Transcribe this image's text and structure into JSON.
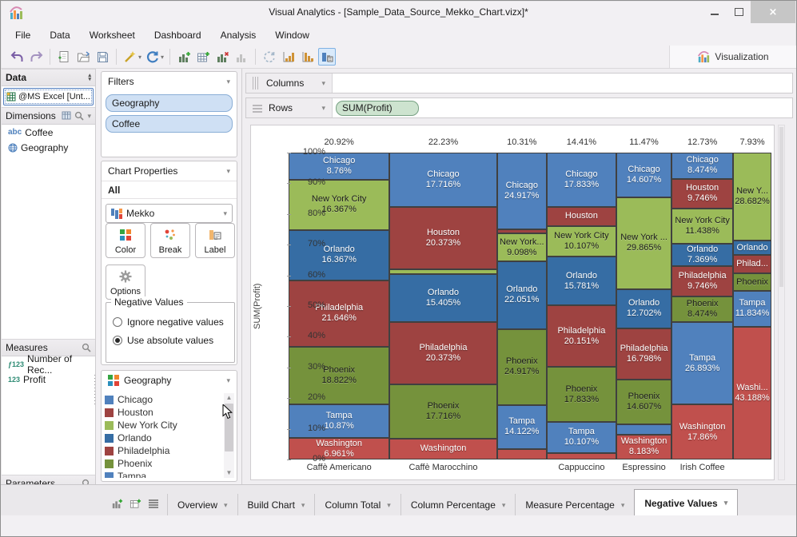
{
  "window": {
    "title": "Visual Analytics - [Sample_Data_Source_Mekko_Chart.vizx]*"
  },
  "menu": {
    "items": [
      "File",
      "Data",
      "Worksheet",
      "Dashboard",
      "Analysis",
      "Window"
    ]
  },
  "toolbar": {
    "visualization_label": "Visualization"
  },
  "data_panel": {
    "header": "Data",
    "source": "@MS Excel [Unt...",
    "dimensions": {
      "header": "Dimensions",
      "items": [
        {
          "icon": "abc",
          "label": "Coffee"
        },
        {
          "icon": "globe",
          "label": "Geography"
        }
      ]
    },
    "measures": {
      "header": "Measures",
      "items": [
        {
          "icon": "ƒ123",
          "label": "Number of Rec..."
        },
        {
          "icon": "123",
          "label": "Profit"
        }
      ]
    },
    "parameters": {
      "header": "Parameters"
    }
  },
  "filters": {
    "header": "Filters",
    "pills": [
      "Geography",
      "Coffee"
    ]
  },
  "chart_properties": {
    "header": "Chart Properties",
    "scope": "All",
    "chart_type_label": "Mekko",
    "color_button": "Color",
    "break_button": "Break",
    "label_button": "Label",
    "options_button": "Options",
    "negative_values": {
      "legend": "Negative Values",
      "options": [
        {
          "label": "Ignore negative values",
          "selected": false
        },
        {
          "label": "Use absolute values",
          "selected": true
        }
      ]
    }
  },
  "legend": {
    "header": "Geography",
    "items": [
      {
        "label": "Chicago",
        "color": "#5081BD"
      },
      {
        "label": "Houston",
        "color": "#9E4341"
      },
      {
        "label": "New York City",
        "color": "#9BBB59"
      },
      {
        "label": "Orlando",
        "color": "#366DA4"
      },
      {
        "label": "Philadelphia",
        "color": "#9E4341"
      },
      {
        "label": "Phoenix",
        "color": "#75923C"
      },
      {
        "label": "Tampa",
        "color": "#5081BD"
      }
    ]
  },
  "shelves": {
    "columns": "Columns",
    "rows": "Rows",
    "rows_pill": "SUM(Profit)"
  },
  "chart_data": {
    "type": "mekko",
    "ylabel": "SUM(Profit)",
    "y_ticks": [
      "100%",
      "90%",
      "80%",
      "70%",
      "60%",
      "50%",
      "40%",
      "30%",
      "20%",
      "10%",
      "0%"
    ],
    "colors": {
      "Chicago": "#5081BD",
      "Houston": "#9E4341",
      "New York City": "#9BBB59",
      "Orlando": "#366DA4",
      "Philadelphia": "#9E4341",
      "Phoenix": "#75923C",
      "Tampa": "#5081BD",
      "Washington": "#C0504D"
    },
    "dark_text_cities": [
      "New York City",
      "Phoenix"
    ],
    "columns": [
      {
        "category": "Caffè Americano",
        "width_pct": 20.92,
        "width_label": "20.92%",
        "show_category": true,
        "segments": [
          {
            "city": "Chicago",
            "value": 8.76,
            "name_label": "Chicago",
            "value_label": "8.76%"
          },
          {
            "city": "New York City",
            "value": 16.367,
            "name_label": "New York City",
            "value_label": "16.367%"
          },
          {
            "city": "Orlando",
            "value": 16.367,
            "name_label": "Orlando",
            "value_label": "16.367%"
          },
          {
            "city": "Philadelphia",
            "value": 21.646,
            "name_label": "Philadelphia",
            "value_label": "21.646%"
          },
          {
            "city": "Phoenix",
            "value": 18.822,
            "name_label": "Phoenix",
            "value_label": "18.822%"
          },
          {
            "city": "Tampa",
            "value": 10.87,
            "name_label": "Tampa",
            "value_label": "10.87%"
          },
          {
            "city": "Washington",
            "value": 6.961,
            "name_label": "Washington",
            "value_label": "6.961%"
          }
        ]
      },
      {
        "category": "Caffè Marocchino",
        "width_pct": 22.23,
        "width_label": "22.23%",
        "show_category": true,
        "segments": [
          {
            "city": "Chicago",
            "value": 17.716,
            "name_label": "Chicago",
            "value_label": "17.716%"
          },
          {
            "city": "Houston",
            "value": 20.373,
            "name_label": "Houston",
            "value_label": "20.373%"
          },
          {
            "city": "New York City",
            "value": 1.6,
            "name_label": null,
            "value_label": null
          },
          {
            "city": "Orlando",
            "value": 15.405,
            "name_label": "Orlando",
            "value_label": "15.405%"
          },
          {
            "city": "Philadelphia",
            "value": 20.373,
            "name_label": "Philadelphia",
            "value_label": "20.373%"
          },
          {
            "city": "Phoenix",
            "value": 17.716,
            "name_label": "Phoenix",
            "value_label": "17.716%"
          },
          {
            "city": "Washington",
            "value": 6.817,
            "name_label": "Washington",
            "value_label": null
          }
        ]
      },
      {
        "category": "",
        "width_pct": 10.31,
        "width_label": "10.31%",
        "show_category": false,
        "segments": [
          {
            "city": "Chicago",
            "value": 24.917,
            "name_label": "Chicago",
            "value_label": "24.917%"
          },
          {
            "city": "Houston",
            "value": 1.4,
            "name_label": null,
            "value_label": null
          },
          {
            "city": "New York City",
            "value": 9.098,
            "name_label": "New York...",
            "value_label": "9.098%"
          },
          {
            "city": "Orlando",
            "value": 22.051,
            "name_label": "Orlando",
            "value_label": "22.051%"
          },
          {
            "city": "Phoenix",
            "value": 24.917,
            "name_label": "Phoenix",
            "value_label": "24.917%"
          },
          {
            "city": "Tampa",
            "value": 14.122,
            "name_label": "Tampa",
            "value_label": "14.122%"
          },
          {
            "city": "Washington",
            "value": 3.495,
            "name_label": null,
            "value_label": null
          }
        ]
      },
      {
        "category": "Cappuccino",
        "width_pct": 14.41,
        "width_label": "14.41%",
        "show_category": true,
        "segments": [
          {
            "city": "Chicago",
            "value": 17.833,
            "name_label": "Chicago",
            "value_label": "17.833%"
          },
          {
            "city": "Houston",
            "value": 6.0,
            "name_label": "Houston",
            "value_label": null
          },
          {
            "city": "New York City",
            "value": 10.107,
            "name_label": "New York City",
            "value_label": "10.107%"
          },
          {
            "city": "Orlando",
            "value": 15.781,
            "name_label": "Orlando",
            "value_label": "15.781%"
          },
          {
            "city": "Philadelphia",
            "value": 20.151,
            "name_label": "Philadelphia",
            "value_label": "20.151%"
          },
          {
            "city": "Phoenix",
            "value": 17.833,
            "name_label": "Phoenix",
            "value_label": "17.833%"
          },
          {
            "city": "Tampa",
            "value": 10.107,
            "name_label": "Tampa",
            "value_label": "10.107%"
          },
          {
            "city": "Washington",
            "value": 2.188,
            "name_label": null,
            "value_label": null
          }
        ]
      },
      {
        "category": "Espressino",
        "width_pct": 11.47,
        "width_label": "11.47%",
        "show_category": true,
        "segments": [
          {
            "city": "Chicago",
            "value": 14.607,
            "name_label": "Chicago",
            "value_label": "14.607%"
          },
          {
            "city": "New York City",
            "value": 29.865,
            "name_label": "New York ...",
            "value_label": "29.865%"
          },
          {
            "city": "Orlando",
            "value": 12.702,
            "name_label": "Orlando",
            "value_label": "12.702%"
          },
          {
            "city": "Philadelphia",
            "value": 16.798,
            "name_label": "Philadelphia",
            "value_label": "16.798%"
          },
          {
            "city": "Phoenix",
            "value": 14.607,
            "name_label": "Phoenix",
            "value_label": "14.607%"
          },
          {
            "city": "Tampa",
            "value": 3.238,
            "name_label": null,
            "value_label": null
          },
          {
            "city": "Washington",
            "value": 8.183,
            "name_label": "Washington",
            "value_label": "8.183%"
          }
        ]
      },
      {
        "category": "Irish Coffee",
        "width_pct": 12.73,
        "width_label": "12.73%",
        "show_category": true,
        "segments": [
          {
            "city": "Chicago",
            "value": 8.474,
            "name_label": "Chicago",
            "value_label": "8.474%"
          },
          {
            "city": "Houston",
            "value": 9.746,
            "name_label": "Houston",
            "value_label": "9.746%"
          },
          {
            "city": "New York City",
            "value": 11.438,
            "name_label": "New York City",
            "value_label": "11.438%"
          },
          {
            "city": "Orlando",
            "value": 7.369,
            "name_label": "Orlando",
            "value_label": "7.369%"
          },
          {
            "city": "Philadelphia",
            "value": 9.746,
            "name_label": "Philadelphia",
            "value_label": "9.746%"
          },
          {
            "city": "Phoenix",
            "value": 8.474,
            "name_label": "Phoenix",
            "value_label": "8.474%"
          },
          {
            "city": "Tampa",
            "value": 26.893,
            "name_label": "Tampa",
            "value_label": "26.893%"
          },
          {
            "city": "Washington",
            "value": 17.86,
            "name_label": "Washington",
            "value_label": "17.86%"
          }
        ]
      },
      {
        "category": "",
        "width_pct": 7.93,
        "width_label": "7.93%",
        "show_category": false,
        "segments": [
          {
            "city": "New York City",
            "value": 28.682,
            "name_label": "New Y...",
            "value_label": "28.682%"
          },
          {
            "city": "Orlando",
            "value": 4.66,
            "name_label": "Orlando",
            "value_label": null
          },
          {
            "city": "Philadelphia",
            "value": 6.09,
            "name_label": "Philad...",
            "value_label": null
          },
          {
            "city": "Phoenix",
            "value": 5.55,
            "name_label": "Phoenix",
            "value_label": null
          },
          {
            "city": "Tampa",
            "value": 11.834,
            "name_label": "Tampa",
            "value_label": "11.834%"
          },
          {
            "city": "Washington",
            "value": 43.188,
            "name_label": "Washi...",
            "value_label": "43.188%"
          }
        ]
      }
    ]
  },
  "bottom_tabs": {
    "tabs": [
      {
        "label": "Overview",
        "active": false
      },
      {
        "label": "Build Chart",
        "active": false
      },
      {
        "label": "Column Total",
        "active": false
      },
      {
        "label": "Column Percentage",
        "active": false
      },
      {
        "label": "Measure Percentage",
        "active": false
      },
      {
        "label": "Negative Values",
        "active": true
      }
    ]
  }
}
